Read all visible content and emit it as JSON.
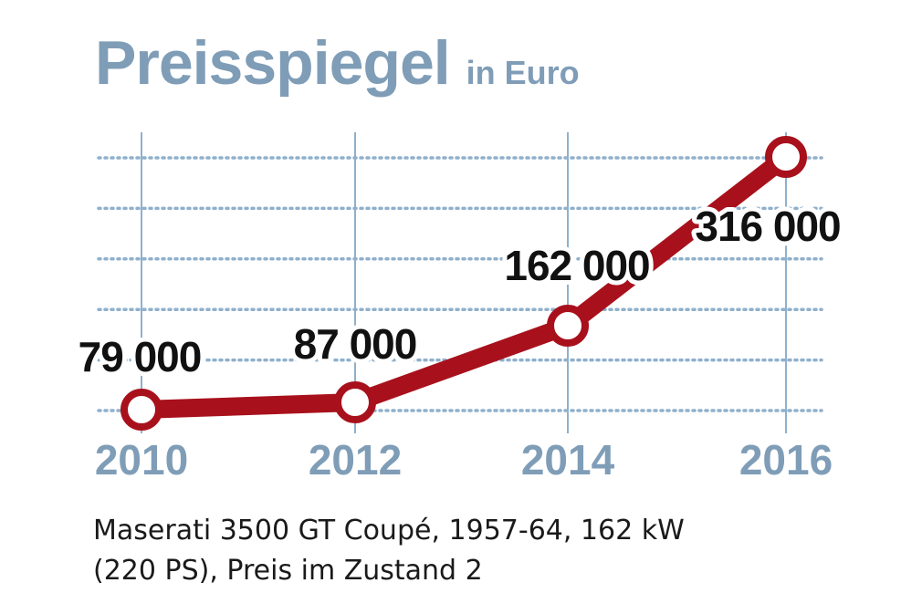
{
  "chart_data": {
    "type": "line",
    "title": "Preisspiegel",
    "subtitle": "in Euro",
    "x": [
      2010,
      2012,
      2014,
      2016
    ],
    "x_tick_labels": [
      "2010",
      "2012",
      "2014",
      "2016"
    ],
    "series": [
      {
        "values": [
          79000,
          87000,
          162000,
          316000
        ],
        "data_labels": [
          "79 000",
          "87 000",
          "162 000",
          "316 000"
        ]
      }
    ],
    "xlabel": "",
    "ylabel": "",
    "grid": true,
    "legend": "none"
  },
  "caption": {
    "line1": "Maserati 3500 GT Coupé, 1957-64, 162 kW",
    "line2": "(220 PS), Preis im Zustand 2"
  },
  "colors": {
    "line": "#a8111c",
    "axis_text": "#7f9db7",
    "grid": "#8fb0cc",
    "marker_fill": "#ffffff",
    "label_text": "#111111"
  }
}
